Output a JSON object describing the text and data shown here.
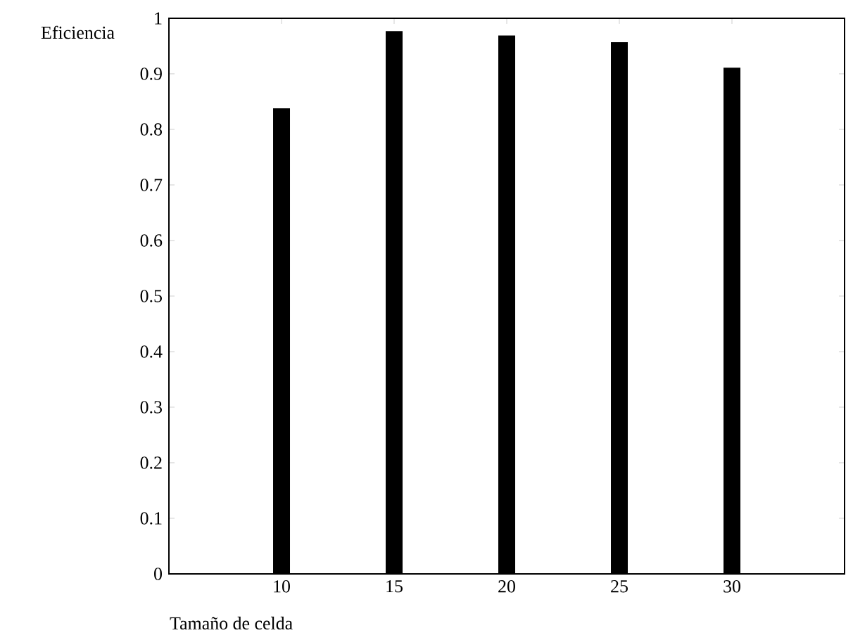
{
  "chart_data": {
    "type": "bar",
    "xlabel": "Tamaño de celda",
    "ylabel": "Eficiencia",
    "x": [
      10,
      15,
      20,
      25,
      30
    ],
    "values": [
      0.838,
      0.977,
      0.969,
      0.957,
      0.911
    ],
    "color": "#000000",
    "xlim": [
      5,
      35
    ],
    "ylim": [
      0,
      1
    ],
    "xticks": [
      10,
      15,
      20,
      25,
      30
    ],
    "yticks": [
      0,
      0.1,
      0.2,
      0.3,
      0.4,
      0.5,
      0.6,
      0.7,
      0.8,
      0.9,
      1
    ]
  }
}
